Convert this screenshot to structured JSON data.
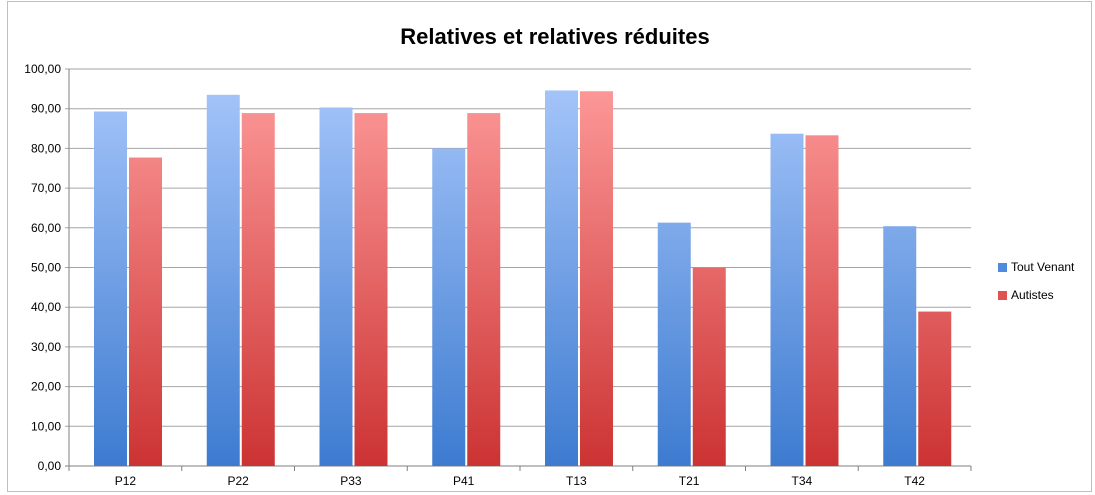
{
  "chart_data": {
    "type": "bar",
    "title": "Relatives et relatives réduites",
    "categories": [
      "P12",
      "P22",
      "P33",
      "P41",
      "T13",
      "T21",
      "T34",
      "T42"
    ],
    "series": [
      {
        "name": "Tout Venant",
        "values": [
          89.3,
          93.5,
          90.3,
          80.0,
          94.6,
          61.3,
          83.7,
          60.4
        ],
        "color_top": "#a9c8fb",
        "color_bottom": "#3d7bd0"
      },
      {
        "name": "Autistes",
        "values": [
          77.7,
          88.9,
          88.9,
          88.9,
          94.4,
          50.0,
          83.3,
          38.9
        ],
        "color_top": "#ff9d9d",
        "color_bottom": "#cc3333"
      }
    ],
    "ylim": [
      0,
      100
    ],
    "yticks": [
      "0,00",
      "10,00",
      "20,00",
      "30,00",
      "40,00",
      "50,00",
      "60,00",
      "70,00",
      "80,00",
      "90,00",
      "100,00"
    ],
    "grid": true,
    "legend_position": "right"
  }
}
